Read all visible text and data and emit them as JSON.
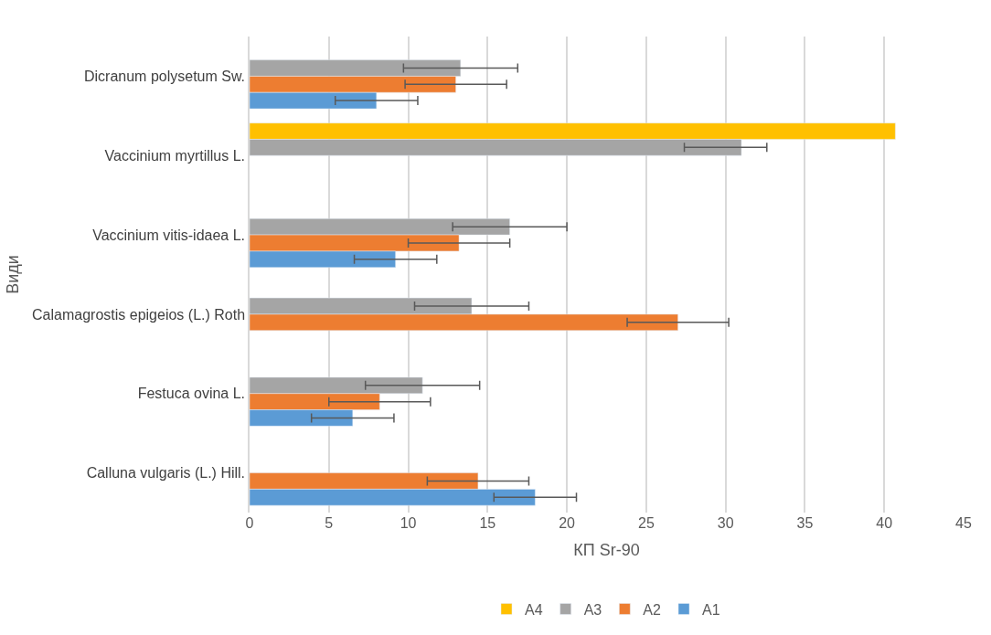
{
  "chart_data": {
    "type": "bar",
    "orientation": "horizontal",
    "xlabel": "КП Sr-90",
    "ylabel": "Види",
    "categories": [
      "Dicranum polysetum Sw.",
      "Vaccinium myrtillus L.",
      "Vaccinium vitis-idaea L.",
      "Calamagrostis epigeios (L.) Roth",
      "Festuca ovina L.",
      "Calluna vulgaris (L.) Hill."
    ],
    "series": [
      {
        "name": "A4",
        "color": "#ffc000",
        "values": [
          null,
          40.7,
          null,
          null,
          null,
          null
        ]
      },
      {
        "name": "A3",
        "color": "#a5a5a5",
        "values": [
          13.3,
          31.0,
          16.4,
          14.0,
          10.9,
          null
        ],
        "errors": [
          3.6,
          [
            27.4,
            32.6
          ],
          3.6,
          3.6,
          3.6,
          null
        ]
      },
      {
        "name": "A2",
        "color": "#ed7d31",
        "values": [
          13.0,
          null,
          13.2,
          27.0,
          8.2,
          14.4
        ],
        "errors": [
          3.2,
          null,
          3.2,
          3.2,
          3.2,
          3.2
        ]
      },
      {
        "name": "A1",
        "color": "#5b9bd5",
        "values": [
          8.0,
          null,
          9.2,
          null,
          6.5,
          18.0
        ],
        "errors": [
          2.6,
          null,
          2.6,
          null,
          2.6,
          2.6
        ]
      }
    ],
    "xlim": [
      0,
      45
    ],
    "xticks": [
      0,
      5,
      10,
      15,
      20,
      25,
      30,
      35,
      40,
      45
    ],
    "grid": "x",
    "legend": "bottom"
  }
}
